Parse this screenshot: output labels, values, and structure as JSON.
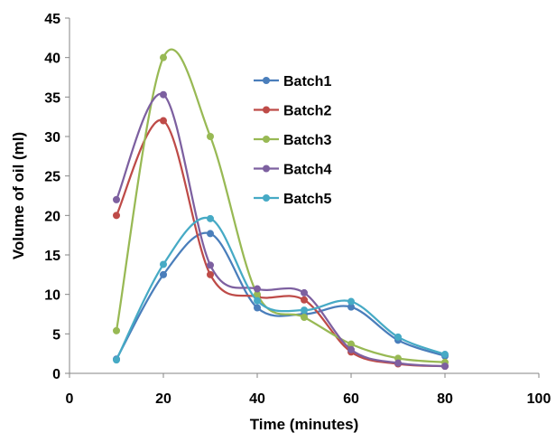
{
  "chart_data": {
    "type": "line",
    "xlabel": "Time (minutes)",
    "ylabel": "Volume of oil (ml)",
    "xlim": [
      0,
      100
    ],
    "ylim": [
      0,
      45
    ],
    "xticks": [
      "0",
      "20",
      "40",
      "60",
      "80",
      "100"
    ],
    "yticks": [
      "0",
      "5",
      "10",
      "15",
      "20",
      "25",
      "30",
      "35",
      "40",
      "45"
    ],
    "grid": false,
    "smooth": true,
    "legend_position": "upper-center",
    "x": [
      10,
      20,
      30,
      40,
      50,
      60,
      70,
      80
    ],
    "series": [
      {
        "name": "Batch1",
        "color": "#4A7EBB",
        "values": [
          1.8,
          12.5,
          17.7,
          8.3,
          7.5,
          8.4,
          4.2,
          2.2
        ]
      },
      {
        "name": "Batch2",
        "color": "#BE4B48",
        "values": [
          20.0,
          32.0,
          12.5,
          9.7,
          9.3,
          2.7,
          1.2,
          0.9
        ]
      },
      {
        "name": "Batch3",
        "color": "#98B954",
        "values": [
          5.4,
          40.0,
          30.0,
          10.0,
          7.1,
          3.7,
          1.9,
          1.4
        ]
      },
      {
        "name": "Batch4",
        "color": "#7D60A0",
        "values": [
          22.0,
          35.3,
          13.7,
          10.7,
          10.2,
          3.0,
          1.3,
          0.9
        ]
      },
      {
        "name": "Batch5",
        "color": "#46AAC5",
        "values": [
          1.7,
          13.8,
          19.6,
          9.2,
          8.0,
          9.1,
          4.6,
          2.4
        ]
      }
    ]
  }
}
